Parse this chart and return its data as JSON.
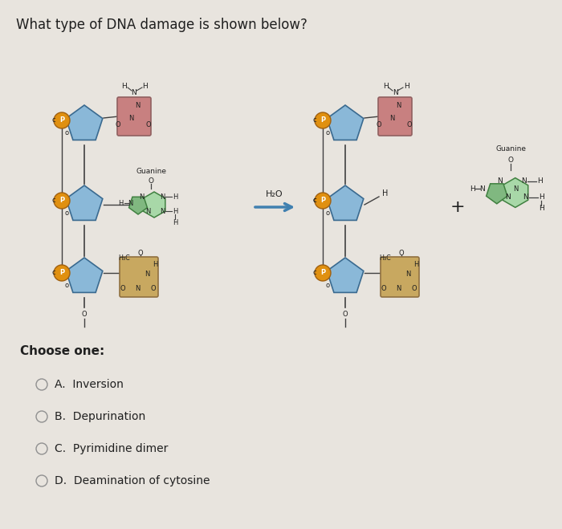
{
  "title": "What type of DNA damage is shown below?",
  "title_fontsize": 12,
  "background_color": "#e8e4de",
  "choose_one_text": "Choose one:",
  "choices": [
    "A.  Inversion",
    "B.  Depurination",
    "C.  Pyrimidine dimer",
    "D.  Deamination of cytosine"
  ],
  "colors": {
    "background": "#e8e4de",
    "blue_pent_face": "#8ab8d8",
    "blue_pent_dark": "#3a6a90",
    "blue_pent_light": "#c0d8ec",
    "pink_base_face": "#c88080",
    "pink_base_dark": "#906060",
    "green_base_face": "#80b880",
    "green_base_dark": "#408040",
    "green_base_light": "#a8d8a8",
    "tan_base_face": "#c8a860",
    "tan_base_dark": "#907040",
    "gold_circle": "#e09010",
    "gold_dark": "#a06010",
    "arrow_color": "#4080b0",
    "text_dark": "#202020",
    "line_color": "#404040"
  },
  "radio_circle_color": "#909090"
}
